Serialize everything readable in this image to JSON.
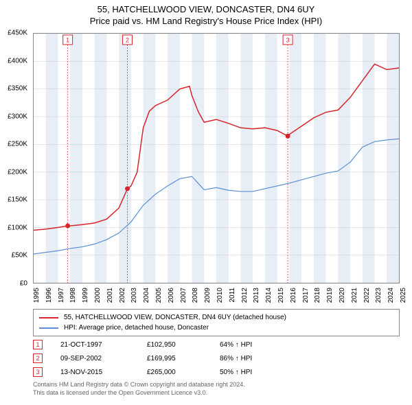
{
  "title": "55, HATCHELLWOOD VIEW, DONCASTER, DN4 6UY",
  "subtitle": "Price paid vs. HM Land Registry's House Price Index (HPI)",
  "chart": {
    "type": "line",
    "background_color": "#ffffff",
    "plot_border_color": "#888888",
    "grid_color": "#cccccc",
    "band_color": "#e8eef6",
    "ylim": [
      0,
      450000
    ],
    "ytick_step": 50000,
    "yticks": [
      "£0",
      "£50K",
      "£100K",
      "£150K",
      "£200K",
      "£250K",
      "£300K",
      "£350K",
      "£400K",
      "£450K"
    ],
    "xlim": [
      1995,
      2025
    ],
    "xticks": [
      "1995",
      "1996",
      "1997",
      "1998",
      "1999",
      "2000",
      "2001",
      "2002",
      "2003",
      "2004",
      "2005",
      "2006",
      "2007",
      "2008",
      "2009",
      "2010",
      "2011",
      "2012",
      "2013",
      "2014",
      "2015",
      "2016",
      "2017",
      "2018",
      "2019",
      "2020",
      "2021",
      "2022",
      "2023",
      "2024",
      "2025"
    ],
    "title_fontsize": 13,
    "axis_label_fontsize": 10,
    "series": [
      {
        "name": "55, HATCHELLWOOD VIEW, DONCASTER, DN4 6UY (detached house)",
        "color": "#d8232a",
        "line_width": 1.5,
        "points": [
          [
            1995,
            95000
          ],
          [
            1996,
            97000
          ],
          [
            1997,
            100000
          ],
          [
            1997.8,
            102950
          ],
          [
            1998,
            103000
          ],
          [
            1999,
            105000
          ],
          [
            2000,
            108000
          ],
          [
            2001,
            115000
          ],
          [
            2002,
            135000
          ],
          [
            2002.7,
            169995
          ],
          [
            2003,
            175000
          ],
          [
            2003.5,
            200000
          ],
          [
            2004,
            280000
          ],
          [
            2004.5,
            310000
          ],
          [
            2005,
            320000
          ],
          [
            2006,
            330000
          ],
          [
            2007,
            350000
          ],
          [
            2007.8,
            355000
          ],
          [
            2008,
            338000
          ],
          [
            2008.5,
            310000
          ],
          [
            2009,
            290000
          ],
          [
            2010,
            295000
          ],
          [
            2011,
            288000
          ],
          [
            2012,
            280000
          ],
          [
            2013,
            278000
          ],
          [
            2014,
            280000
          ],
          [
            2015,
            275000
          ],
          [
            2015.87,
            265000
          ],
          [
            2016,
            268000
          ],
          [
            2017,
            283000
          ],
          [
            2018,
            298000
          ],
          [
            2019,
            308000
          ],
          [
            2020,
            312000
          ],
          [
            2021,
            335000
          ],
          [
            2022,
            365000
          ],
          [
            2023,
            395000
          ],
          [
            2024,
            385000
          ],
          [
            2025,
            388000
          ]
        ]
      },
      {
        "name": "HPI: Average price, detached house, Doncaster",
        "color": "#5b8fd6",
        "line_width": 1.2,
        "points": [
          [
            1995,
            52000
          ],
          [
            1996,
            55000
          ],
          [
            1997,
            58000
          ],
          [
            1998,
            62000
          ],
          [
            1999,
            65000
          ],
          [
            2000,
            70000
          ],
          [
            2001,
            78000
          ],
          [
            2002,
            90000
          ],
          [
            2003,
            110000
          ],
          [
            2004,
            140000
          ],
          [
            2005,
            160000
          ],
          [
            2006,
            175000
          ],
          [
            2007,
            188000
          ],
          [
            2008,
            192000
          ],
          [
            2009,
            168000
          ],
          [
            2010,
            172000
          ],
          [
            2011,
            167000
          ],
          [
            2012,
            165000
          ],
          [
            2013,
            165000
          ],
          [
            2014,
            170000
          ],
          [
            2015,
            175000
          ],
          [
            2016,
            180000
          ],
          [
            2017,
            186000
          ],
          [
            2018,
            192000
          ],
          [
            2019,
            198000
          ],
          [
            2020,
            202000
          ],
          [
            2021,
            218000
          ],
          [
            2022,
            245000
          ],
          [
            2023,
            255000
          ],
          [
            2024,
            258000
          ],
          [
            2025,
            260000
          ]
        ]
      }
    ],
    "sale_markers": [
      {
        "n": "1",
        "x": 1997.8,
        "y": 102950,
        "color": "#d8232a"
      },
      {
        "n": "2",
        "x": 2002.7,
        "y": 169995,
        "color": "#d8232a"
      },
      {
        "n": "3",
        "x": 2015.87,
        "y": 265000,
        "color": "#d8232a"
      }
    ]
  },
  "legend": [
    {
      "color": "#d8232a",
      "label": "55, HATCHELLWOOD VIEW, DONCASTER, DN4 6UY (detached house)"
    },
    {
      "color": "#5b8fd6",
      "label": "HPI: Average price, detached house, Doncaster"
    }
  ],
  "sales": [
    {
      "n": "1",
      "date": "21-OCT-1997",
      "price": "£102,950",
      "pct": "64% ↑ HPI",
      "color": "#d8232a"
    },
    {
      "n": "2",
      "date": "09-SEP-2002",
      "price": "£169,995",
      "pct": "86% ↑ HPI",
      "color": "#d8232a"
    },
    {
      "n": "3",
      "date": "13-NOV-2015",
      "price": "£265,000",
      "pct": "50% ↑ HPI",
      "color": "#d8232a"
    }
  ],
  "footer": {
    "line1": "Contains HM Land Registry data © Crown copyright and database right 2024.",
    "line2": "This data is licensed under the Open Government Licence v3.0."
  }
}
